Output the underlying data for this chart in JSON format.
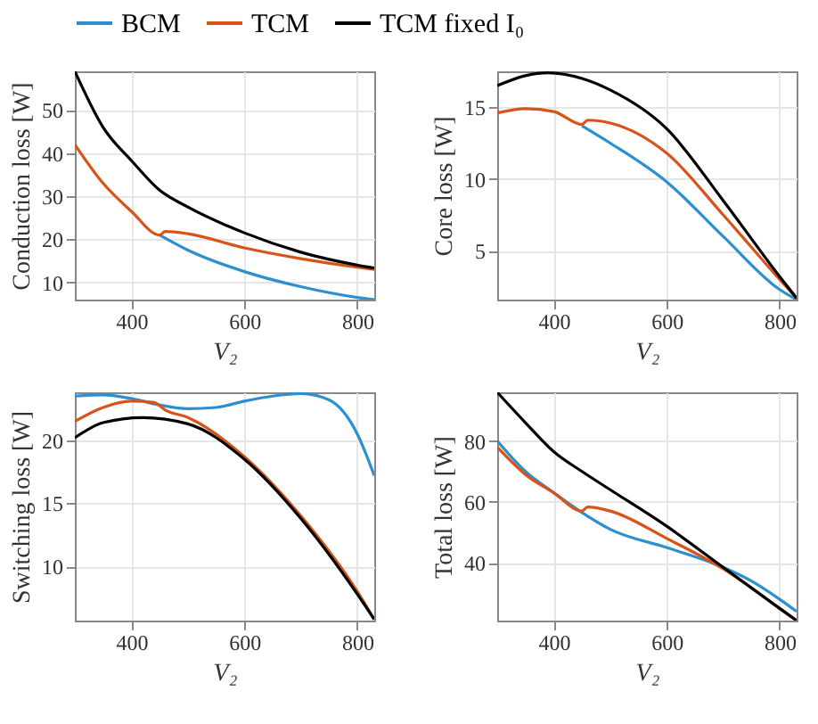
{
  "chart_data": [
    {
      "type": "line",
      "xlabel": "V₂",
      "ylabel": "Conduction loss [W]",
      "xlim": [
        300,
        830
      ],
      "ylim": [
        6,
        59
      ],
      "xticks": [
        400,
        600,
        800
      ],
      "yticks": [
        10,
        20,
        30,
        40,
        50
      ],
      "grid": true,
      "legend": "top",
      "series": [
        {
          "name": "BCM",
          "color": "#2b8fd0",
          "x": [
            450,
            500,
            600,
            700,
            800,
            830
          ],
          "values": [
            21,
            17.5,
            12.5,
            9,
            6.5,
            6
          ]
        },
        {
          "name": "TCM",
          "color": "#d95319",
          "x": [
            300,
            350,
            400,
            450,
            460,
            500,
            600,
            700,
            800,
            830
          ],
          "values": [
            42,
            33,
            26.5,
            21,
            21.8,
            21.3,
            18,
            15.5,
            13.5,
            13
          ]
        },
        {
          "name": "TCM fixed I₀",
          "color": "#000000",
          "x": [
            300,
            350,
            400,
            450,
            500,
            600,
            700,
            800,
            830
          ],
          "values": [
            59,
            46,
            38.3,
            31.4,
            27.5,
            21.5,
            17,
            14,
            13.3
          ]
        }
      ]
    },
    {
      "type": "line",
      "xlabel": "V₂",
      "ylabel": "Core loss [W]",
      "xlim": [
        300,
        830
      ],
      "ylim": [
        1.6,
        17.5
      ],
      "xticks": [
        400,
        600,
        800
      ],
      "yticks": [
        5,
        10,
        15
      ],
      "grid": true,
      "legend": "top",
      "series": [
        {
          "name": "BCM",
          "color": "#2b8fd0",
          "x": [
            450,
            500,
            600,
            700,
            800,
            830
          ],
          "values": [
            13.7,
            12.5,
            9.8,
            6,
            2.3,
            1.6
          ]
        },
        {
          "name": "TCM",
          "color": "#d95319",
          "x": [
            300,
            350,
            400,
            450,
            460,
            500,
            600,
            700,
            800,
            830
          ],
          "values": [
            14.6,
            14.9,
            14.7,
            13.8,
            14.1,
            13.9,
            11.8,
            7.5,
            3,
            1.7
          ]
        },
        {
          "name": "TCM fixed I₀",
          "color": "#000000",
          "x": [
            300,
            350,
            390,
            450,
            500,
            600,
            700,
            800,
            830
          ],
          "values": [
            16.5,
            17.2,
            17.4,
            17,
            16.2,
            13.5,
            8.5,
            3.2,
            1.7
          ]
        }
      ]
    },
    {
      "type": "line",
      "xlabel": "V₂",
      "ylabel": "Switching loss [W]",
      "xlim": [
        300,
        830
      ],
      "ylim": [
        5.7,
        23.8
      ],
      "xticks": [
        400,
        600,
        800
      ],
      "yticks": [
        10,
        15,
        20
      ],
      "grid": true,
      "legend": "top",
      "series": [
        {
          "name": "BCM",
          "color": "#2b8fd0",
          "x": [
            300,
            350,
            400,
            450,
            500,
            550,
            600,
            650,
            700,
            750,
            800,
            830
          ],
          "values": [
            23.5,
            23.6,
            23.3,
            22.8,
            22.5,
            22.6,
            23.1,
            23.5,
            23.7,
            23.2,
            20.5,
            17.2
          ]
        },
        {
          "name": "TCM",
          "color": "#d95319",
          "x": [
            300,
            350,
            400,
            440,
            460,
            500,
            600,
            700,
            800,
            830
          ],
          "values": [
            21.5,
            22.6,
            23.1,
            23,
            22.4,
            21.8,
            18.7,
            14,
            8,
            5.8
          ]
        },
        {
          "name": "TCM fixed I₀",
          "color": "#000000",
          "x": [
            300,
            350,
            420,
            500,
            600,
            700,
            800,
            830
          ],
          "values": [
            20.2,
            21.4,
            21.8,
            21.3,
            18.5,
            13.8,
            7.8,
            5.8
          ]
        }
      ]
    },
    {
      "type": "line",
      "xlabel": "V₂",
      "ylabel": "Total loss [W]",
      "xlim": [
        300,
        830
      ],
      "ylim": [
        21,
        96
      ],
      "xticks": [
        400,
        600,
        800
      ],
      "yticks": [
        40,
        60,
        80
      ],
      "grid": true,
      "legend": "top",
      "series": [
        {
          "name": "BCM",
          "color": "#2b8fd0",
          "x": [
            300,
            350,
            400,
            450,
            500,
            600,
            700,
            750,
            800,
            830
          ],
          "values": [
            80,
            70,
            63,
            56.5,
            51,
            45,
            38.5,
            34,
            28,
            24
          ]
        },
        {
          "name": "TCM",
          "color": "#d95319",
          "x": [
            300,
            350,
            400,
            450,
            460,
            500,
            600,
            700,
            800,
            830
          ],
          "values": [
            78,
            69,
            63,
            57,
            58.3,
            57,
            48,
            38,
            25,
            21
          ]
        },
        {
          "name": "TCM fixed I₀",
          "color": "#000000",
          "x": [
            300,
            350,
            400,
            450,
            500,
            600,
            700,
            800,
            830
          ],
          "values": [
            96,
            86,
            76.5,
            70,
            64,
            52,
            38.5,
            25,
            21
          ]
        }
      ]
    }
  ]
}
